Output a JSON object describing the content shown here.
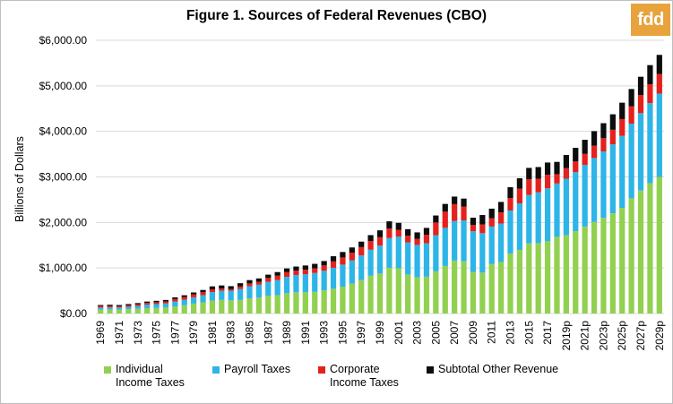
{
  "brand": {
    "logo_text": "fdd",
    "logo_color": "#e8a33d"
  },
  "chart_data": {
    "type": "bar",
    "stacked": true,
    "title": "Figure 1. Sources of Federal Revenues (CBO)",
    "ylabel": "Billions of Dollars",
    "xlabel": "",
    "ylim": [
      0,
      6000
    ],
    "yticks": [
      "$0.00",
      "$1,000.00",
      "$2,000.00",
      "$3,000.00",
      "$4,000.00",
      "$5,000.00",
      "$6,000.00"
    ],
    "ytick_values": [
      0,
      1000,
      2000,
      3000,
      4000,
      5000,
      6000
    ],
    "grid": true,
    "legend_position": "bottom",
    "categories": [
      "1969",
      "1970",
      "1971",
      "1972",
      "1973",
      "1974",
      "1975",
      "1976",
      "1977",
      "1978",
      "1979",
      "1980",
      "1981",
      "1982",
      "1983",
      "1984",
      "1985",
      "1986",
      "1987",
      "1988",
      "1989",
      "1990",
      "1991",
      "1992",
      "1993",
      "1994",
      "1995",
      "1996",
      "1997",
      "1998",
      "1999",
      "2000",
      "2001",
      "2002",
      "2003",
      "2004",
      "2005",
      "2006",
      "2007",
      "2008",
      "2009",
      "2010",
      "2011",
      "2012",
      "2013",
      "2014",
      "2015",
      "2016",
      "2017",
      "2018",
      "2019p",
      "2020p",
      "2021p",
      "2022p",
      "2023p",
      "2024p",
      "2025p",
      "2026p",
      "2027p",
      "2028p",
      "2029p"
    ],
    "labeled_categories": [
      "1969",
      "1971",
      "1973",
      "1975",
      "1977",
      "1979",
      "1981",
      "1983",
      "1985",
      "1987",
      "1989",
      "1991",
      "1993",
      "1995",
      "1997",
      "1999",
      "2001",
      "2003",
      "2005",
      "2007",
      "2009",
      "2011",
      "2013",
      "2015",
      "2017",
      "2019p",
      "2021p",
      "2023p",
      "2025p",
      "2027p",
      "2029p"
    ],
    "series": [
      {
        "name": "Individual Income Taxes",
        "legend_label": [
          "Individual",
          "Income Taxes"
        ],
        "color": "#92d050",
        "values": [
          87,
          90,
          86,
          95,
          103,
          119,
          122,
          131,
          157,
          181,
          218,
          244,
          286,
          298,
          289,
          298,
          335,
          349,
          393,
          401,
          446,
          467,
          468,
          476,
          510,
          543,
          590,
          656,
          737,
          829,
          879,
          1004,
          994,
          858,
          794,
          809,
          927,
          1044,
          1163,
          1146,
          915,
          899,
          1091,
          1132,
          1316,
          1395,
          1540,
          1546,
          1587,
          1684,
          1718,
          1809,
          1910,
          2010,
          2100,
          2200,
          2320,
          2530,
          2700,
          2860,
          3000
        ]
      },
      {
        "name": "Payroll Taxes",
        "legend_label": [
          "Payroll Taxes"
        ],
        "color": "#2db5e8",
        "values": [
          44,
          45,
          48,
          53,
          63,
          75,
          85,
          90,
          106,
          121,
          138,
          158,
          183,
          201,
          209,
          239,
          265,
          283,
          303,
          334,
          359,
          380,
          396,
          414,
          428,
          461,
          484,
          509,
          539,
          572,
          612,
          653,
          694,
          701,
          713,
          733,
          794,
          838,
          869,
          900,
          891,
          865,
          819,
          845,
          947,
          1024,
          1065,
          1115,
          1162,
          1171,
          1243,
          1295,
          1350,
          1405,
          1460,
          1515,
          1580,
          1640,
          1700,
          1760,
          1830
        ]
      },
      {
        "name": "Corporate Income Taxes",
        "legend_label": [
          "Corporate",
          "Income Taxes"
        ],
        "color": "#e5211d",
        "values": [
          37,
          33,
          27,
          32,
          36,
          39,
          41,
          42,
          54,
          60,
          66,
          65,
          61,
          49,
          37,
          57,
          61,
          63,
          84,
          95,
          103,
          94,
          98,
          100,
          118,
          140,
          157,
          172,
          182,
          189,
          184,
          207,
          151,
          148,
          132,
          189,
          278,
          354,
          370,
          304,
          138,
          191,
          181,
          242,
          274,
          321,
          344,
          300,
          297,
          205,
          230,
          235,
          245,
          270,
          290,
          320,
          370,
          380,
          400,
          415,
          430
        ]
      },
      {
        "name": "Subtotal Other Revenue",
        "legend_label": [
          "Subtotal Other Revenue"
        ],
        "color": "#0d0d0d",
        "values": [
          19,
          25,
          26,
          28,
          28,
          30,
          31,
          35,
          38,
          39,
          40,
          50,
          66,
          69,
          66,
          72,
          73,
          76,
          74,
          80,
          82,
          91,
          93,
          101,
          97,
          114,
          120,
          114,
          121,
          132,
          152,
          161,
          152,
          146,
          143,
          149,
          154,
          171,
          166,
          174,
          161,
          208,
          212,
          232,
          237,
          231,
          249,
          256,
          270,
          270,
          290,
          300,
          310,
          320,
          330,
          340,
          360,
          380,
          400,
          420,
          420
        ]
      }
    ]
  }
}
